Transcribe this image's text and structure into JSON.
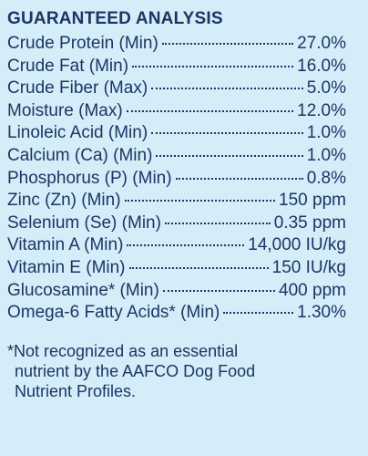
{
  "header": {
    "title": "GUARANTEED ANALYSIS"
  },
  "table": {
    "rows": [
      [
        "Crude Protein (Min)",
        "27.0%"
      ],
      [
        "Crude Fat (Min)",
        "16.0%"
      ],
      [
        "Crude Fiber (Max)",
        "5.0%"
      ],
      [
        "Moisture (Max)",
        "12.0%"
      ],
      [
        "Linoleic Acid (Min)",
        "1.0%"
      ],
      [
        "Calcium (Ca) (Min)",
        "1.0%"
      ],
      [
        "Phosphorus (P) (Min)",
        "0.8%"
      ],
      [
        "Zinc (Zn) (Min)",
        "150 ppm"
      ],
      [
        "Selenium (Se) (Min)",
        "0.35 ppm"
      ],
      [
        "Vitamin A (Min)",
        "14,000 IU/kg"
      ],
      [
        "Vitamin E (Min)",
        "150 IU/kg"
      ],
      [
        "Glucosamine* (Min)",
        "400 ppm"
      ],
      [
        "Omega-6 Fatty Acids* (Min)",
        "1.30%"
      ]
    ]
  },
  "footnote": {
    "lines": [
      "*Not recognized as an essential",
      "nutrient by the AAFCO Dog Food",
      "Nutrient Profiles."
    ]
  }
}
